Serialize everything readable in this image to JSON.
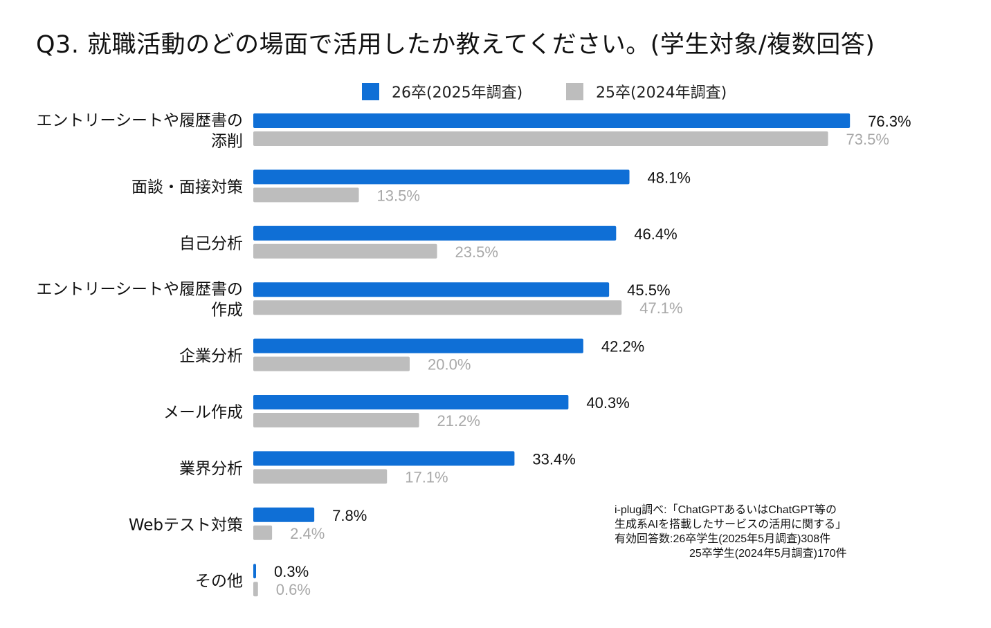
{
  "title": "Q3. 就職活動のどの場面で活用したか教えてください。(学生対象/複数回答)",
  "chart_data": {
    "type": "bar",
    "orientation": "horizontal",
    "title": "Q3. 就職活動のどの場面で活用したか教えてください。(学生対象/複数回答)",
    "categories": [
      [
        "エントリーシートや履歴書の",
        "添削"
      ],
      [
        "面談・面接対策"
      ],
      [
        "自己分析"
      ],
      [
        "エントリーシートや履歴書の",
        "作成"
      ],
      [
        "企業分析"
      ],
      [
        "メール作成"
      ],
      [
        "業界分析"
      ],
      [
        "Webテスト対策"
      ],
      [
        "その他"
      ]
    ],
    "series": [
      {
        "name": "26卒(2025年調査)",
        "color": "#0F6FD6",
        "values": [
          76.3,
          48.1,
          46.4,
          45.5,
          42.2,
          40.3,
          33.4,
          7.8,
          0.3
        ],
        "labels": [
          "76.3%",
          "48.1%",
          "46.4%",
          "45.5%",
          "42.2%",
          "40.3%",
          "33.4%",
          "7.8%",
          "0.3%"
        ]
      },
      {
        "name": "25卒(2024年調査)",
        "color": "#BDBDBD",
        "values": [
          73.5,
          13.5,
          23.5,
          47.1,
          20.0,
          21.2,
          17.1,
          2.4,
          0.6
        ],
        "labels": [
          "73.5%",
          "13.5%",
          "23.5%",
          "47.1%",
          "20.0%",
          "21.2%",
          "17.1%",
          "2.4%",
          "0.6%"
        ]
      }
    ],
    "xlim": [
      0,
      100
    ],
    "legend": "top-center",
    "grid": false
  },
  "note": {
    "line1": "i-plug調べ:「ChatGPTあるいはChatGPT等の",
    "line2": "生成系AIを搭載したサービスの活用に関する」",
    "line3": "有効回答数:26卒学生(2025年5月調査)308件",
    "line4": "25卒学生(2024年5月調査)170件"
  }
}
